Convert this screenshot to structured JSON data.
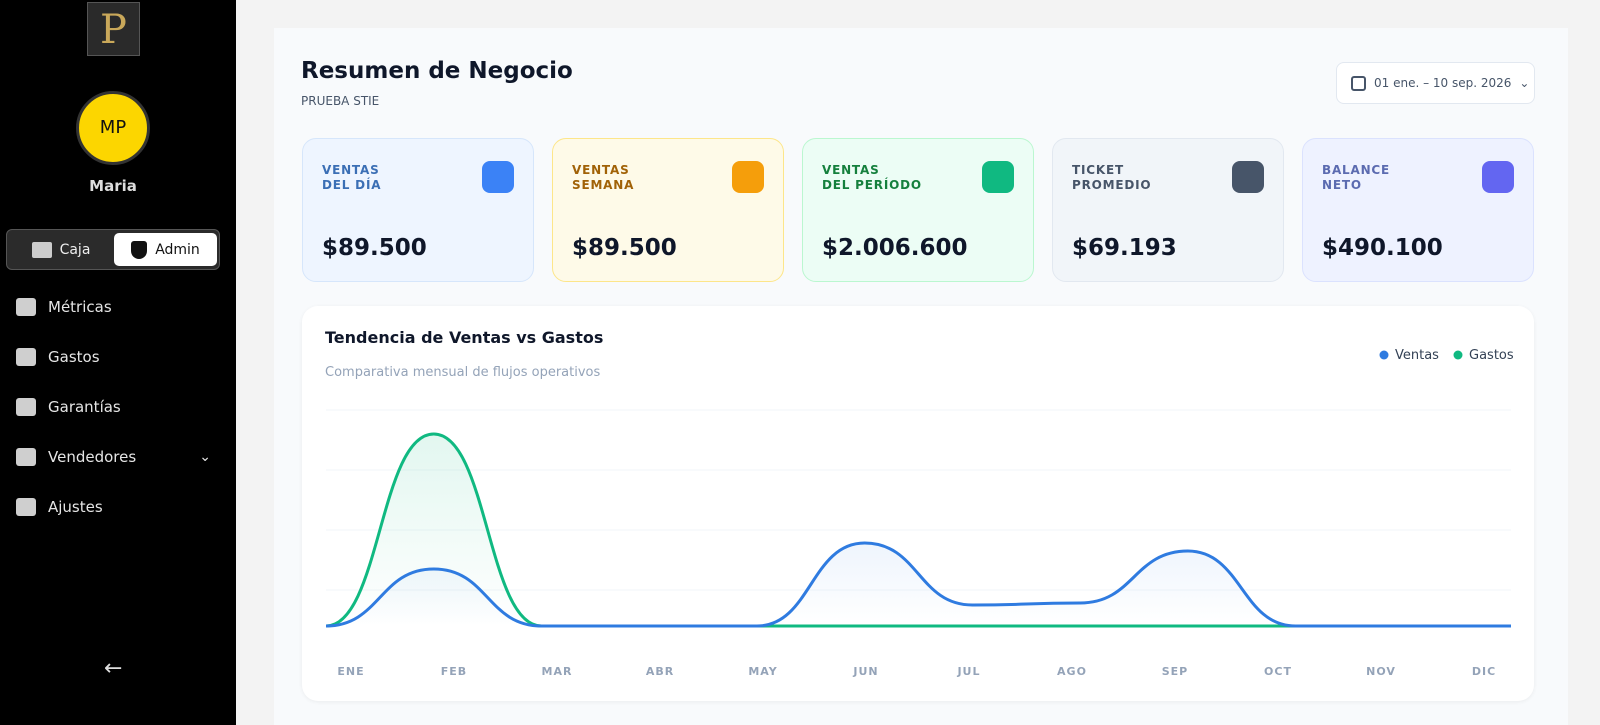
{
  "sidebar": {
    "logo": "P",
    "avatar": "MP",
    "user": "Maria",
    "toggle": [
      "Caja",
      "Admin"
    ],
    "menu": [
      "Métricas",
      "Gastos",
      "Garantías",
      "Vendedores",
      "Ajustes"
    ]
  },
  "header": {
    "title": "Resumen de Negocio",
    "subtitle": "PRUEBA STIE",
    "date_range": "01 ene. – 10 sep. 2026"
  },
  "kpis": [
    {
      "label": [
        "VENTAS",
        "DEL DÍA"
      ],
      "value": "$89.500"
    },
    {
      "label": [
        "VENTAS",
        "SEMANA"
      ],
      "value": "$89.500"
    },
    {
      "label": [
        "VENTAS",
        "DEL PERÍODO"
      ],
      "value": "$2.006.600"
    },
    {
      "label": [
        "TICKET",
        "PROMEDIO"
      ],
      "value": "$69.193"
    },
    {
      "label": [
        "BALANCE",
        "NETO"
      ],
      "value": "$490.100"
    }
  ],
  "chart_data": {
    "type": "line",
    "title": "Tendencia de Ventas vs Gastos",
    "subtitle": "Comparativa mensual de flujos operativos",
    "categories": [
      "ENE",
      "FEB",
      "MAR",
      "ABR",
      "MAY",
      "JUN",
      "JUL",
      "AGO",
      "SEP",
      "OCT",
      "NOV",
      "DIC"
    ],
    "series": [
      {
        "name": "Ventas",
        "color": "#2f7be0",
        "values": [
          0,
          57,
          0,
          0,
          0,
          83,
          21,
          23,
          75,
          0,
          0,
          0
        ]
      },
      {
        "name": "Gastos",
        "color": "#10b981",
        "values": [
          0,
          192,
          0,
          0,
          0,
          0,
          0,
          0,
          0,
          0,
          0,
          0
        ]
      }
    ],
    "ylim": [
      0,
      240
    ]
  }
}
